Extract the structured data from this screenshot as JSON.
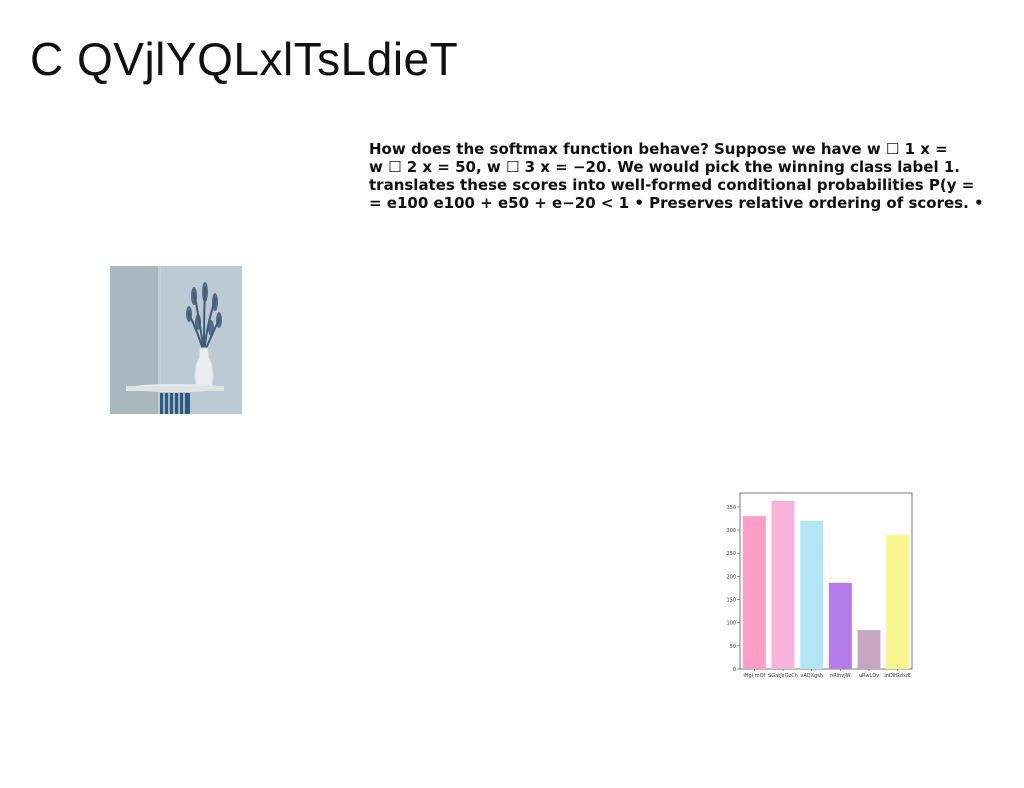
{
  "slide": {
    "title": "C QVjlYQLxlTsLdieT",
    "text_lines": [
      "How does the softmax function behave? Suppose we have w ☐ 1 x =",
      "w ☐ 2 x = 50, w ☐ 3 x = −20. We would pick the winning class label 1.",
      "translates these scores into well-formed conditional probabilities P(y =",
      "= e100 e100 + e50 + e−20 < 1 • Preserves relative ordering of scores. •"
    ]
  },
  "photo": {
    "icon": "vase-with-dried-plant-photo",
    "colors": {
      "wall_left": "#a9b7bf",
      "wall_right": "#bccbd3",
      "shelf": "#e6e9ea",
      "vase": "#e9eef1",
      "plant": "#3f5a78",
      "stripes": "#2f5a7e"
    }
  },
  "chart_data": {
    "type": "bar",
    "categories": [
      "iHgl mQf",
      "SGatJxOzCh",
      "vAQXgsh",
      "nRihvJW",
      "uRwLDv",
      "lnDllGzhzE"
    ],
    "values": [
      330,
      363,
      320,
      186,
      84,
      289
    ],
    "colors": [
      "#ff9ec6",
      "#f7b3dc",
      "#b3e6f5",
      "#b57bea",
      "#c7a7c0",
      "#f7f58d"
    ],
    "title": "",
    "xlabel": "",
    "ylabel": "",
    "ylim": [
      0,
      380
    ],
    "yticks": [
      0,
      50,
      100,
      150,
      200,
      250,
      300,
      350
    ],
    "grid": false,
    "legend": "none"
  }
}
